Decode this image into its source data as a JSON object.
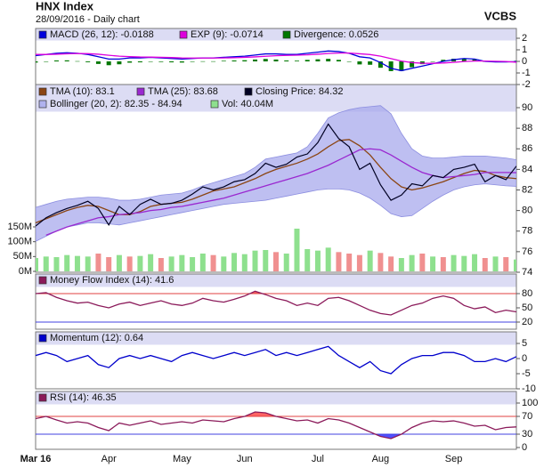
{
  "chart_data": [
    {
      "type": "line",
      "title": "HNX Index",
      "subtitle": "28/09/2016 - Daily chart",
      "source": "VCBS",
      "ylim": [
        -2,
        2
      ],
      "yticks": [
        2,
        1,
        0,
        -1,
        -2
      ],
      "series": [
        {
          "name": "MACD (26, 12): -0.0188",
          "kind": "line",
          "color": "#0000dd",
          "values": [
            0.5,
            0.6,
            0.7,
            0.75,
            0.7,
            0.6,
            0.4,
            0.2,
            0.2,
            0.3,
            0.3,
            0.35,
            0.3,
            0.25,
            0.2,
            0.25,
            0.3,
            0.3,
            0.35,
            0.4,
            0.45,
            0.55,
            0.65,
            0.65,
            0.6,
            0.6,
            0.7,
            0.8,
            0.9,
            0.85,
            0.7,
            0.4,
            0.3,
            -0.1,
            -0.6,
            -0.8,
            -0.6,
            -0.4,
            -0.2,
            0.0,
            0.15,
            0.25,
            0.2,
            0.0,
            -0.05,
            -0.05,
            -0.0188
          ]
        },
        {
          "name": "EXP (9): -0.0714",
          "kind": "line",
          "color": "#dd00dd",
          "values": [
            0.6,
            0.6,
            0.62,
            0.66,
            0.68,
            0.67,
            0.62,
            0.53,
            0.45,
            0.41,
            0.38,
            0.37,
            0.35,
            0.33,
            0.3,
            0.29,
            0.29,
            0.29,
            0.3,
            0.32,
            0.35,
            0.39,
            0.44,
            0.49,
            0.52,
            0.54,
            0.57,
            0.62,
            0.68,
            0.72,
            0.72,
            0.66,
            0.59,
            0.45,
            0.24,
            0.03,
            -0.1,
            -0.16,
            -0.17,
            -0.14,
            -0.08,
            -0.01,
            0.03,
            0.03,
            0.01,
            -0.01,
            -0.0714
          ]
        },
        {
          "name": "Divergence: 0.0526",
          "kind": "bar",
          "color": "#007700",
          "values": [
            -0.1,
            0,
            0.08,
            0.09,
            0.02,
            -0.07,
            -0.22,
            -0.33,
            -0.25,
            -0.11,
            -0.08,
            -0.02,
            -0.05,
            -0.08,
            -0.1,
            -0.04,
            0.01,
            0.01,
            0.05,
            0.08,
            0.1,
            0.16,
            0.21,
            0.16,
            0.08,
            0.06,
            0.13,
            0.18,
            0.22,
            0.13,
            -0.02,
            -0.26,
            -0.29,
            -0.55,
            -0.84,
            -0.83,
            -0.5,
            -0.24,
            -0.03,
            0.14,
            0.23,
            0.26,
            0.17,
            -0.03,
            -0.06,
            -0.04,
            0.0526
          ]
        }
      ]
    },
    {
      "type": "line",
      "ylim": [
        74,
        90
      ],
      "yticks": [
        90,
        88,
        86,
        84,
        82,
        80,
        78,
        76,
        74
      ],
      "y2lim": [
        0,
        150000000
      ],
      "y2ticks": [
        {
          "value": 150000000,
          "label": "150M"
        },
        {
          "value": 100000000,
          "label": "100M"
        },
        {
          "value": 50000000,
          "label": "50M"
        },
        {
          "value": 0,
          "label": "0M"
        }
      ],
      "series": [
        {
          "name": "TMA (10): 83.1",
          "kind": "line",
          "color": "#8b4513",
          "values": [
            78.8,
            79.2,
            79.6,
            80.0,
            80.3,
            80.5,
            80.4,
            80.0,
            79.6,
            79.6,
            79.9,
            80.4,
            80.6,
            80.7,
            80.8,
            81.1,
            81.5,
            81.9,
            82.1,
            82.3,
            82.7,
            83.1,
            83.6,
            84.0,
            84.3,
            84.6,
            85.0,
            85.5,
            86.2,
            86.8,
            86.9,
            86.3,
            85.4,
            84.2,
            83.1,
            82.3,
            82.0,
            82.2,
            82.5,
            82.8,
            83.2,
            83.6,
            83.9,
            83.8,
            83.4,
            83.2,
            83.1
          ]
        },
        {
          "name": "TMA (25): 83.68",
          "kind": "line",
          "color": "#9a28d0",
          "values": [
            null,
            77.6,
            78.0,
            78.4,
            78.7,
            79.0,
            79.3,
            79.4,
            79.6,
            79.7,
            79.8,
            80.0,
            80.1,
            80.3,
            80.4,
            80.6,
            80.8,
            81.0,
            81.2,
            81.5,
            81.8,
            82.1,
            82.4,
            82.7,
            83.0,
            83.3,
            83.6,
            84.0,
            84.4,
            84.9,
            85.4,
            85.9,
            86.0,
            85.9,
            85.4,
            84.8,
            84.2,
            83.7,
            83.4,
            83.2,
            83.3,
            83.4,
            83.5,
            83.7,
            83.7,
            83.7,
            83.68
          ]
        },
        {
          "name": "Closing Price: 84.32",
          "kind": "close",
          "color": "#000022",
          "values": [
            78.5,
            79.3,
            79.8,
            80.2,
            80.5,
            80.9,
            80.2,
            78.6,
            80.4,
            79.6,
            80.6,
            81.1,
            80.6,
            80.7,
            81.0,
            81.6,
            82.3,
            82.0,
            82.3,
            82.8,
            83.0,
            83.6,
            84.6,
            84.2,
            84.5,
            85.2,
            85.5,
            86.6,
            88.4,
            87.0,
            86.2,
            84.0,
            84.6,
            82.5,
            81.0,
            81.5,
            82.6,
            82.4,
            83.4,
            83.2,
            84.0,
            84.2,
            84.5,
            82.8,
            83.4,
            83.0,
            84.32
          ]
        },
        {
          "name": "Bollinger (20, 2): 82.35 - 84.94",
          "kind": "band",
          "color": "#a8aaec",
          "upper": [
            80.3,
            80.6,
            80.9,
            81.1,
            81.2,
            81.3,
            81.3,
            81.2,
            81.0,
            81.0,
            81.1,
            81.3,
            81.5,
            81.6,
            81.7,
            82.0,
            82.4,
            82.7,
            83.0,
            83.3,
            83.6,
            84.2,
            85.0,
            85.2,
            85.4,
            85.6,
            86.2,
            87.5,
            89.0,
            89.5,
            89.8,
            90.0,
            90.1,
            90.2,
            89.4,
            87.5,
            86.0,
            85.3,
            85.1,
            85.1,
            85.2,
            85.3,
            85.3,
            85.3,
            85.2,
            85.1,
            84.94
          ],
          "lower": [
            77.0,
            77.5,
            78.0,
            78.4,
            78.6,
            78.8,
            78.8,
            78.7,
            78.6,
            78.8,
            79.0,
            79.2,
            79.4,
            79.6,
            79.8,
            80.0,
            80.2,
            80.4,
            80.6,
            80.7,
            80.8,
            80.9,
            81.0,
            81.2,
            81.4,
            81.6,
            81.8,
            82.0,
            82.1,
            82.1,
            82.0,
            81.7,
            81.2,
            80.5,
            79.7,
            79.4,
            79.5,
            80.2,
            80.9,
            81.5,
            82.0,
            82.3,
            82.5,
            82.6,
            82.5,
            82.4,
            82.35
          ]
        },
        {
          "name": "Vol: 40.04M",
          "kind": "bar",
          "axis": "y2",
          "color": "#8ee08e",
          "down_color": "#f09090",
          "values": [
            45000000,
            50000000,
            48000000,
            55000000,
            52000000,
            50000000,
            60000000,
            48000000,
            55000000,
            50000000,
            52000000,
            58000000,
            45000000,
            50000000,
            55000000,
            48000000,
            60000000,
            55000000,
            50000000,
            62000000,
            58000000,
            70000000,
            72000000,
            65000000,
            60000000,
            144000000,
            75000000,
            70000000,
            80000000,
            65000000,
            60000000,
            55000000,
            70000000,
            62000000,
            50000000,
            45000000,
            55000000,
            60000000,
            50000000,
            48000000,
            55000000,
            52000000,
            58000000,
            45000000,
            50000000,
            48000000,
            40040000
          ]
        }
      ]
    },
    {
      "type": "line",
      "ylim": [
        20,
        80
      ],
      "yticks": [
        80,
        50,
        20
      ],
      "levels": [
        {
          "value": 80,
          "color": "#e04040",
          "fill": "#ff6464",
          "side": "above"
        },
        {
          "value": 20,
          "color": "#4040e0",
          "fill": "#6060ff",
          "side": "below"
        }
      ],
      "series": [
        {
          "name": "Money Flow Index (14): 41.6",
          "kind": "line",
          "color": "#8b1a5a",
          "values": [
            80,
            82,
            72,
            65,
            60,
            62,
            55,
            50,
            58,
            62,
            55,
            60,
            65,
            58,
            55,
            60,
            70,
            65,
            62,
            68,
            75,
            85,
            78,
            70,
            65,
            55,
            60,
            55,
            70,
            72,
            65,
            55,
            45,
            38,
            35,
            45,
            55,
            60,
            70,
            75,
            70,
            55,
            48,
            52,
            40,
            45,
            41.6
          ]
        }
      ]
    },
    {
      "type": "line",
      "ylim": [
        -10,
        5
      ],
      "yticks": [
        5,
        0,
        -5,
        -10
      ],
      "series": [
        {
          "name": "Momentum (12): 0.64",
          "kind": "line",
          "color": "#0000cc",
          "values": [
            1,
            2,
            1,
            -1,
            0,
            1,
            -2,
            -3,
            0,
            1,
            0,
            1,
            0,
            -1,
            1,
            2,
            1,
            0,
            1,
            2,
            1,
            2,
            3,
            1,
            2,
            1,
            2,
            3,
            4,
            1,
            -1,
            -3,
            -1,
            -4,
            -5,
            -2,
            0,
            1,
            1,
            2,
            2,
            1,
            -1,
            -1,
            0,
            -1,
            0.64
          ]
        }
      ]
    },
    {
      "type": "line",
      "ylim": [
        0,
        100
      ],
      "yticks": [
        100,
        70,
        30,
        0
      ],
      "levels": [
        {
          "value": 70,
          "color": "#e04040",
          "fill": "#ff6464",
          "side": "above"
        },
        {
          "value": 30,
          "color": "#4040e0",
          "fill": "#5050ff",
          "side": "below"
        }
      ],
      "categories": [
        "Mar 16",
        null,
        null,
        null,
        null,
        null,
        null,
        "Apr",
        null,
        null,
        null,
        null,
        null,
        null,
        "May",
        null,
        null,
        null,
        null,
        null,
        "Jun",
        null,
        null,
        null,
        null,
        null,
        null,
        "Jul",
        null,
        null,
        null,
        null,
        null,
        "Aug",
        null,
        null,
        null,
        null,
        null,
        null,
        "Sep",
        null,
        null,
        null,
        null,
        null,
        null
      ],
      "series": [
        {
          "name": "RSI (14): 46.35",
          "kind": "line",
          "color": "#8b1a5a",
          "values": [
            65,
            70,
            62,
            55,
            58,
            55,
            45,
            38,
            55,
            50,
            55,
            60,
            52,
            55,
            58,
            55,
            62,
            60,
            58,
            65,
            70,
            80,
            78,
            70,
            65,
            60,
            62,
            55,
            65,
            62,
            55,
            45,
            35,
            25,
            20,
            30,
            45,
            55,
            60,
            58,
            60,
            55,
            48,
            50,
            40,
            45,
            46.35
          ]
        }
      ]
    }
  ]
}
